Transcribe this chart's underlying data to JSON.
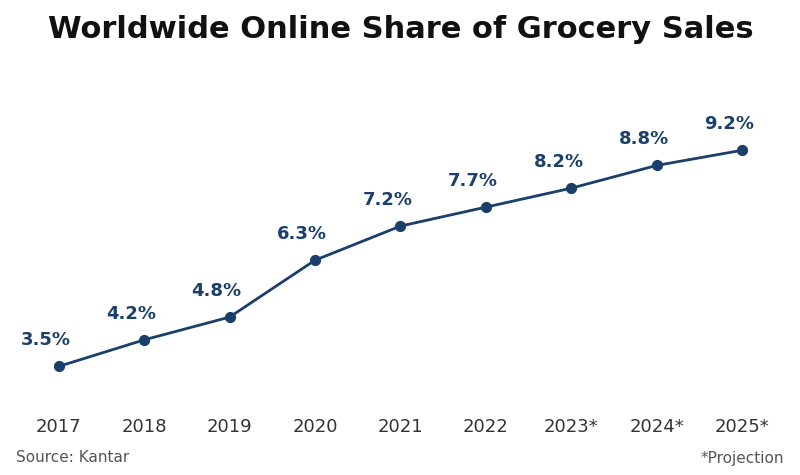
{
  "title": "Worldwide Online Share of Grocery Sales",
  "years": [
    2017,
    2018,
    2019,
    2020,
    2021,
    2022,
    2023,
    2024,
    2025
  ],
  "x_labels": [
    "2017",
    "2018",
    "2019",
    "2020",
    "2021",
    "2022",
    "2023*",
    "2024*",
    "2025*"
  ],
  "values": [
    3.5,
    4.2,
    4.8,
    6.3,
    7.2,
    7.7,
    8.2,
    8.8,
    9.2
  ],
  "line_color": "#1b3f6b",
  "marker_color": "#1b3f6b",
  "label_color": "#1b3f6b",
  "background_color": "#ffffff",
  "title_fontsize": 22,
  "tick_fontsize": 13,
  "annotation_fontsize": 13,
  "source_text": "Source: Kantar",
  "projection_text": "*Projection",
  "footer_fontsize": 11,
  "ylim": [
    2.5,
    11.5
  ],
  "annotation_offsets_x": [
    -0.15,
    -0.15,
    -0.15,
    -0.15,
    -0.15,
    -0.15,
    -0.15,
    -0.15,
    -0.15
  ],
  "annotation_offsets_y": [
    0.45,
    0.45,
    0.45,
    0.45,
    0.45,
    0.45,
    0.45,
    0.45,
    0.45
  ]
}
